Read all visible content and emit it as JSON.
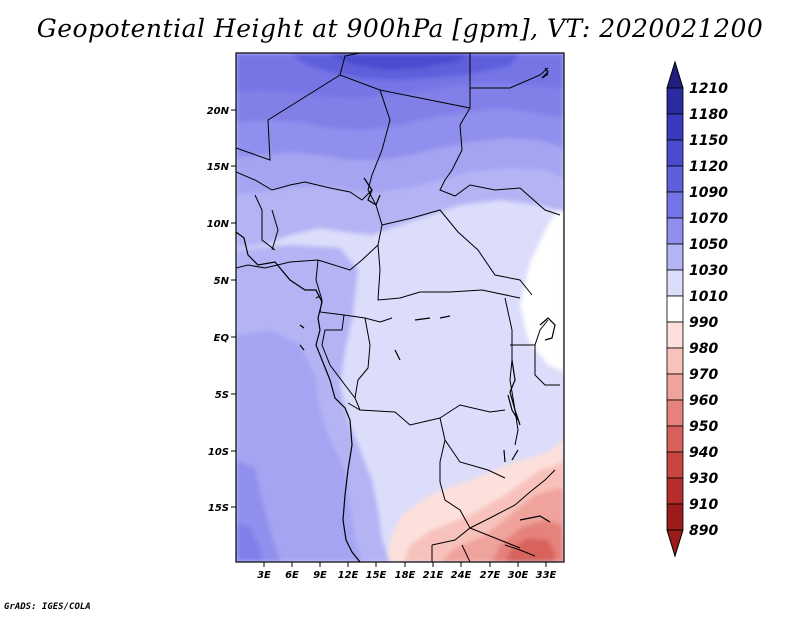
{
  "title": "Geopotential Height at 900hPa [gpm], VT: 2020021200",
  "credit": "GrADS: IGES/COLA",
  "map": {
    "lat_labels": [
      "20N",
      "15N",
      "10N",
      "5N",
      "EQ",
      "5S",
      "10S",
      "15S"
    ],
    "lon_labels": [
      "3E",
      "6E",
      "9E",
      "12E",
      "15E",
      "18E",
      "21E",
      "24E",
      "27E",
      "30E",
      "33E"
    ]
  },
  "colorbar": {
    "labels": [
      "1210",
      "1180",
      "1150",
      "1120",
      "1090",
      "1070",
      "1050",
      "1030",
      "1010",
      "990",
      "980",
      "970",
      "960",
      "950",
      "940",
      "930",
      "910",
      "890"
    ],
    "colors": [
      "#211e7f",
      "#2b2aa0",
      "#3a3abf",
      "#4b4bd0",
      "#5f5fdc",
      "#7474e6",
      "#8f8fee",
      "#b4b4f5",
      "#dcdcfb",
      "#ffffff",
      "#fde0dc",
      "#f8c2bc",
      "#f0a39c",
      "#e5827b",
      "#d8625b",
      "#c94540",
      "#b52e2b",
      "#9b1c1a"
    ]
  }
}
